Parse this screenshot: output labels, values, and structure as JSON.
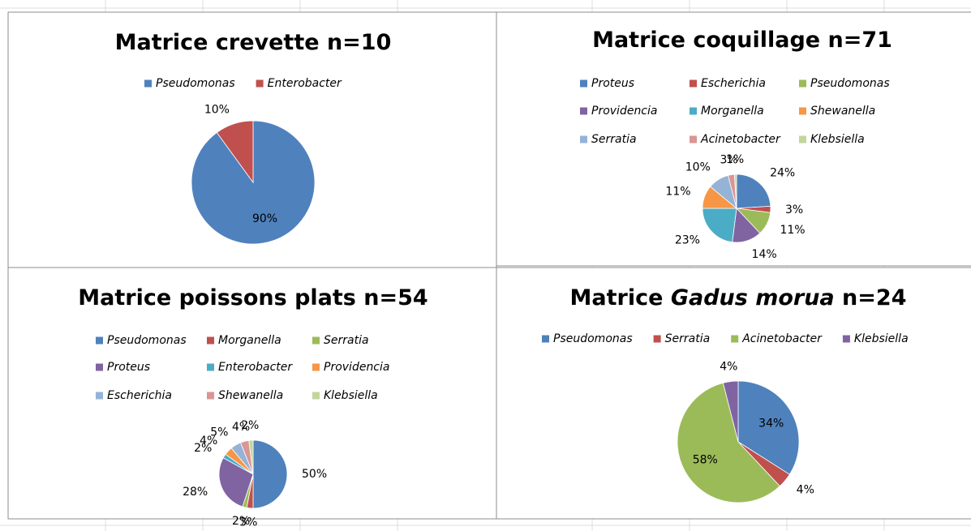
{
  "chart_data": [
    {
      "type": "pie",
      "title": [
        "Matrice crevette n=10"
      ],
      "categories": [
        "Pseudomonas",
        "Enterobacter"
      ],
      "values": [
        90,
        10
      ],
      "value_labels": [
        "90%",
        "10%"
      ],
      "colors": [
        "#4f81bd",
        "#c0504d"
      ],
      "legend": "top"
    },
    {
      "type": "pie",
      "title": [
        "Matrice coquillage n=71"
      ],
      "categories": [
        "Proteus",
        "Escherichia",
        "Pseudomonas",
        "Providencia",
        "Morganella",
        "Shewanella",
        "Serratia",
        "Acinetobacter",
        "Klebsiella"
      ],
      "values": [
        24,
        3,
        11,
        14,
        23,
        11,
        10,
        3,
        1
      ],
      "value_labels": [
        "24%",
        "3%",
        "11%",
        "14%",
        "23%",
        "11%",
        "10%",
        "3%",
        "1%"
      ],
      "colors": [
        "#4f81bd",
        "#c0504d",
        "#9bbb59",
        "#8064a2",
        "#4bacc6",
        "#f79646",
        "#95b3d7",
        "#da9694",
        "#c3d69b"
      ],
      "legend": "top"
    },
    {
      "type": "pie",
      "title": [
        "Matrice poissons plats n=54"
      ],
      "categories": [
        "Pseudomonas",
        "Morganella",
        "Serratia",
        "Proteus",
        "Enterobacter",
        "Providencia",
        "Escherichia",
        "Shewanella",
        "Klebsiella"
      ],
      "values": [
        50,
        3,
        2,
        28,
        2,
        4,
        5,
        4,
        2
      ],
      "value_labels": [
        "50%",
        "3%",
        "2%",
        "28%",
        "2%",
        "4%",
        "5%",
        "4%",
        "2%"
      ],
      "colors": [
        "#4f81bd",
        "#c0504d",
        "#9bbb59",
        "#8064a2",
        "#4bacc6",
        "#f79646",
        "#95b3d7",
        "#da9694",
        "#c3d69b"
      ],
      "legend": "top"
    },
    {
      "type": "pie",
      "title": [
        "Matrice ",
        "Gadus morua",
        " n=24"
      ],
      "categories": [
        "Pseudomonas",
        "Serratia",
        "Acinetobacter",
        "Klebsiella"
      ],
      "values": [
        34,
        4,
        58,
        4
      ],
      "value_labels": [
        "34%",
        "4%",
        "58%",
        "4%"
      ],
      "colors": [
        "#4f81bd",
        "#c0504d",
        "#9bbb59",
        "#8064a2"
      ],
      "legend": "top"
    }
  ]
}
